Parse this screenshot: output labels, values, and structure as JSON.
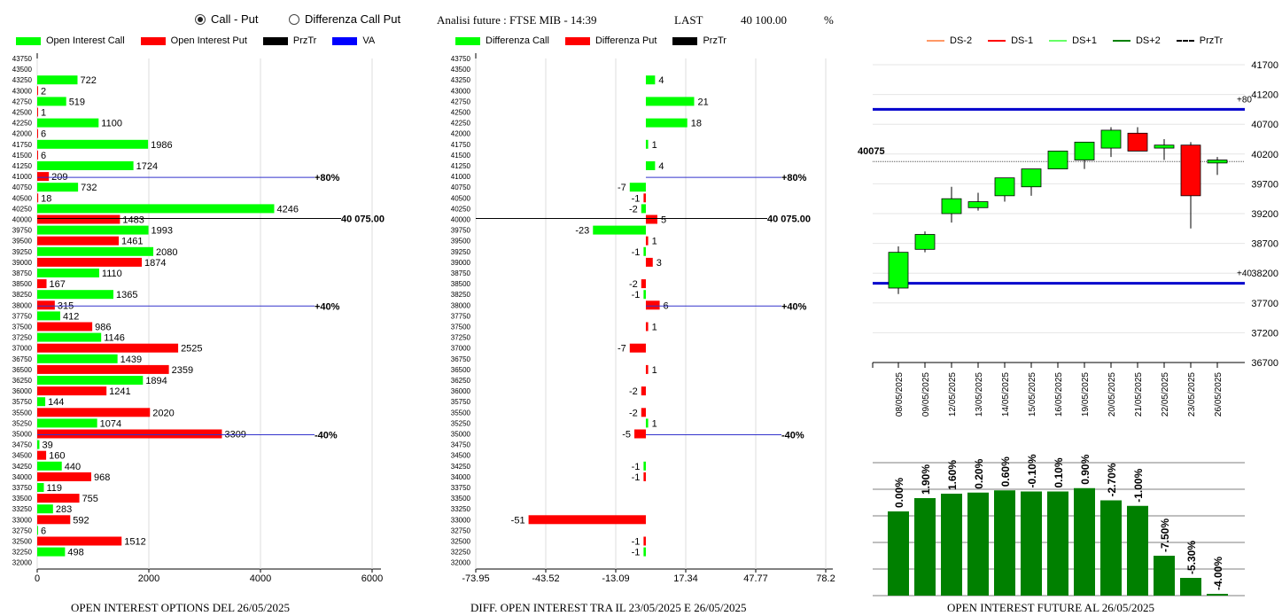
{
  "controls": {
    "radio1": {
      "label": "Call - Put",
      "selected": true
    },
    "radio2": {
      "label": "Differenza Call Put",
      "selected": false
    }
  },
  "header": {
    "title": "Analisi future : FTSE MIB - 14:39",
    "last_label": "LAST",
    "last_value": "40 100.00",
    "pct_label": "%"
  },
  "colors": {
    "call": "#00ff00",
    "put": "#ff0000",
    "przTr": "#000000",
    "va": "#0000ff",
    "future_bar": "#008000"
  },
  "legend1": [
    "Open Interest Call",
    "Open Interest Put",
    "PrzTr",
    "VA"
  ],
  "legend2": [
    "Differenza Call",
    "Differenza Put",
    "PrzTr"
  ],
  "legend3": [
    "DS-2",
    "DS-1",
    "DS+1",
    "DS+2",
    "PrzTr"
  ],
  "footers": {
    "f1": "OPEN INTEREST OPTIONS DEL 26/05/2025",
    "f2": "DIFF. OPEN INTEREST TRA IL 23/05/2025 E 26/05/2025",
    "f3": "OPEN INTEREST FUTURE AL 26/05/2025"
  },
  "chart_data": [
    {
      "type": "bar",
      "orientation": "horizontal",
      "strikes": [
        43750,
        43500,
        43250,
        43000,
        42750,
        42500,
        42250,
        42000,
        41750,
        41500,
        41250,
        41000,
        40750,
        40500,
        40250,
        40000,
        39750,
        39500,
        39250,
        39000,
        38750,
        38500,
        38250,
        38000,
        37750,
        37500,
        37250,
        37000,
        36750,
        36500,
        36250,
        36000,
        35750,
        35500,
        35250,
        35000,
        34750,
        34500,
        34250,
        34000,
        33750,
        33500,
        33250,
        33000,
        32750,
        32500,
        32250,
        32000
      ],
      "series": [
        {
          "name": "Open Interest Call",
          "values": {
            "43250": 722,
            "42750": 519,
            "42250": 1100,
            "41750": 1986,
            "41250": 1724,
            "40750": 732,
            "40250": 4246,
            "39750": 1993,
            "39250": 2080,
            "38750": 1110,
            "38250": 1365,
            "37750": 412,
            "37250": 1146,
            "36750": 1439,
            "36250": 1894,
            "35750": 144,
            "35250": 1074,
            "34750": 39,
            "34250": 440,
            "33750": 119,
            "33250": 283,
            "32750": 6,
            "32250": 498
          }
        },
        {
          "name": "Open Interest Put",
          "values": {
            "43000": 2,
            "42500": 1,
            "42000": 6,
            "41500": 6,
            "41000": 209,
            "40500": 18,
            "40000": 1483,
            "39500": 1461,
            "39000": 1874,
            "38500": 167,
            "38000": 315,
            "37500": 986,
            "37000": 2525,
            "36500": 2359,
            "36000": 1241,
            "35500": 2020,
            "35000": 3309,
            "34500": 160,
            "34000": 968,
            "33500": 755,
            "33000": 592,
            "32500": 1512
          }
        }
      ],
      "xticks": [
        "0",
        "2000",
        "4000",
        "6000"
      ],
      "xlim": [
        0,
        6300
      ],
      "lines": [
        {
          "label": "+80%",
          "strike": 41000,
          "color": "va"
        },
        {
          "label": "40 075.00",
          "strike": 40000,
          "color": "przTr"
        },
        {
          "label": "+40%",
          "strike": 38000,
          "color": "va"
        },
        {
          "label": "-40%",
          "strike": 35000,
          "color": "va"
        }
      ]
    },
    {
      "type": "bar",
      "orientation": "horizontal",
      "series": [
        {
          "name": "Differenza Call",
          "values": {
            "43250": 4,
            "42750": 21,
            "42250": 18,
            "41750": 1,
            "41250": 4,
            "40750": -7,
            "40250": -2,
            "39750": -23,
            "39250": -1,
            "38250": -1,
            "35250": 1,
            "34250": -1,
            "32250": -1
          }
        },
        {
          "name": "Differenza Put",
          "values": {
            "40500": -1,
            "40000": 5,
            "39500": 1,
            "39000": 3,
            "38500": -2,
            "38000": 6,
            "37500": 1,
            "37000": -7,
            "36500": 1,
            "36000": -2,
            "35500": -2,
            "35000": -5,
            "34000": -1,
            "33000": -51,
            "32500": -1
          }
        }
      ],
      "xticks": [
        "-73.95",
        "-43.52",
        "-13.09",
        "17.34",
        "47.77",
        "78.2"
      ],
      "xlim": [
        -73.95,
        78.2
      ],
      "lines": [
        {
          "label": "+80%",
          "strike": 41000,
          "color": "va"
        },
        {
          "label": "40 075.00",
          "strike": 40000,
          "color": "przTr"
        },
        {
          "label": "+40%",
          "strike": 38000,
          "color": "va"
        },
        {
          "label": "-40%",
          "strike": 35000,
          "color": "va"
        }
      ]
    },
    {
      "type": "candlestick",
      "dates": [
        "08/05/2025",
        "09/05/2025",
        "12/05/2025",
        "13/05/2025",
        "14/05/2025",
        "15/05/2025",
        "16/05/2025",
        "19/05/2025",
        "20/05/2025",
        "21/05/2025",
        "22/05/2025",
        "23/05/2025",
        "26/05/2025"
      ],
      "ohlc": [
        [
          37950,
          38650,
          37850,
          38550
        ],
        [
          38600,
          38900,
          38550,
          38850
        ],
        [
          39200,
          39650,
          39050,
          39450
        ],
        [
          39300,
          39550,
          39250,
          39400
        ],
        [
          39500,
          39800,
          39400,
          39800
        ],
        [
          39650,
          39950,
          39500,
          39950
        ],
        [
          39950,
          40250,
          39950,
          40250
        ],
        [
          40100,
          40400,
          39950,
          40400
        ],
        [
          40300,
          40650,
          40150,
          40600
        ],
        [
          40550,
          40650,
          40250,
          40250
        ],
        [
          40300,
          40450,
          40100,
          40350
        ],
        [
          40350,
          40400,
          38950,
          39500
        ],
        [
          40050,
          40150,
          39850,
          40100
        ]
      ],
      "yticks": [
        "41700",
        "41200",
        "40700",
        "40200",
        "39700",
        "39200",
        "38700",
        "38200",
        "37700",
        "37200",
        "36700"
      ],
      "ylim": [
        36700,
        41700
      ],
      "przTr": 40075,
      "przTr_label": "40075",
      "bands": [
        {
          "label": "+80",
          "value": 40950
        },
        {
          "label": "+40",
          "value": 38030
        }
      ]
    },
    {
      "type": "bar",
      "values_label": [
        "0.00%",
        "1.90%",
        "1.60%",
        "0.20%",
        "0.60%",
        "-0.10%",
        "0.10%",
        "0.90%",
        "-2.70%",
        "-1.00%",
        "-7.50%",
        "-5.30%",
        "-4.00%"
      ],
      "heights": [
        0.76,
        0.88,
        0.92,
        0.93,
        0.95,
        0.94,
        0.94,
        0.97,
        0.86,
        0.81,
        0.36,
        0.16,
        0.0
      ]
    }
  ]
}
